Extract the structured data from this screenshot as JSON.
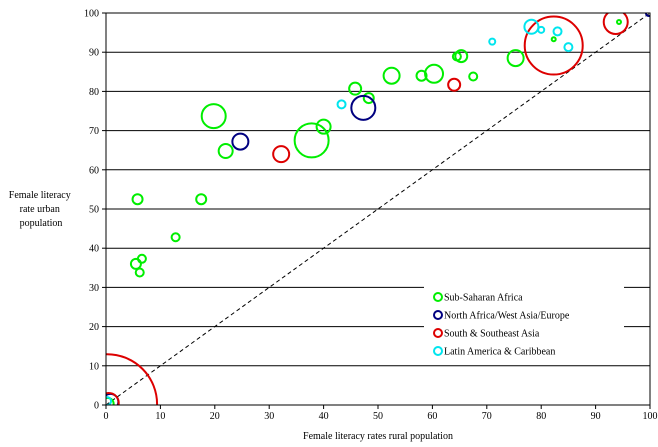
{
  "chart_data": {
    "type": "scatter",
    "title": "",
    "xlabel": "Female literacy rates rural population",
    "ylabel": [
      "Female literacy",
      "rate urban",
      "population"
    ],
    "xlim": [
      0,
      100
    ],
    "ylim": [
      0,
      100
    ],
    "xticks": [
      0,
      10,
      20,
      30,
      40,
      50,
      60,
      70,
      80,
      90,
      100
    ],
    "yticks": [
      0,
      10,
      20,
      30,
      40,
      50,
      60,
      70,
      80,
      90,
      100
    ],
    "grid": "horizontal",
    "reference_line": "y = x (dashed)",
    "legend_position": "lower-right",
    "series": [
      {
        "name": "Sub-Saharan Africa",
        "color": "#00ee00",
        "points": [
          {
            "x": 5.8,
            "y": 52.5,
            "r": 5
          },
          {
            "x": 5.5,
            "y": 36,
            "r": 5
          },
          {
            "x": 6.6,
            "y": 37.3,
            "r": 4
          },
          {
            "x": 6.2,
            "y": 33.8,
            "r": 4
          },
          {
            "x": 12.8,
            "y": 42.8,
            "r": 4
          },
          {
            "x": 17.5,
            "y": 52.5,
            "r": 5
          },
          {
            "x": 19.8,
            "y": 73.7,
            "r": 12
          },
          {
            "x": 22,
            "y": 64.8,
            "r": 7
          },
          {
            "x": 37.8,
            "y": 67.5,
            "r": 17
          },
          {
            "x": 40,
            "y": 71,
            "r": 7
          },
          {
            "x": 45.8,
            "y": 80.7,
            "r": 6
          },
          {
            "x": 48.3,
            "y": 78.3,
            "r": 5
          },
          {
            "x": 52.5,
            "y": 84,
            "r": 8
          },
          {
            "x": 58,
            "y": 84,
            "r": 5
          },
          {
            "x": 60.3,
            "y": 84.5,
            "r": 9
          },
          {
            "x": 64.5,
            "y": 88.9,
            "r": 4
          },
          {
            "x": 65.3,
            "y": 89,
            "r": 6
          },
          {
            "x": 67.5,
            "y": 83.8,
            "r": 4
          },
          {
            "x": 75.3,
            "y": 88.5,
            "r": 8
          },
          {
            "x": 82.3,
            "y": 93.3,
            "r": 2
          },
          {
            "x": 94.3,
            "y": 97.7,
            "r": 2
          },
          {
            "x": 0.3,
            "y": 0.3,
            "r": 6
          }
        ]
      },
      {
        "name": "North Africa/West Asia/Europe",
        "color": "#000080",
        "points": [
          {
            "x": 24.7,
            "y": 67.2,
            "r": 8
          },
          {
            "x": 47.3,
            "y": 75.8,
            "r": 12
          },
          {
            "x": 99.8,
            "y": 100,
            "r": 3
          },
          {
            "x": 0.8,
            "y": 0.8,
            "r": 8
          }
        ]
      },
      {
        "name": "South & Southeast Asia",
        "color": "#dd0000",
        "points": [
          {
            "x": 32.2,
            "y": 64,
            "r": 8
          },
          {
            "x": 64,
            "y": 81.7,
            "r": 6
          },
          {
            "x": 82.3,
            "y": 91.7,
            "r": 29
          },
          {
            "x": 93.7,
            "y": 97.7,
            "r": 12
          },
          {
            "x": 0.2,
            "y": 0.2,
            "r": 50
          },
          {
            "x": 0.5,
            "y": 0.5,
            "r": 10
          }
        ]
      },
      {
        "name": "Latin America & Caribbean",
        "color": "#00e5ee",
        "points": [
          {
            "x": 43.3,
            "y": 76.7,
            "r": 4
          },
          {
            "x": 71,
            "y": 92.7,
            "r": 3
          },
          {
            "x": 78.2,
            "y": 96.5,
            "r": 7
          },
          {
            "x": 80,
            "y": 95.7,
            "r": 3
          },
          {
            "x": 83,
            "y": 95.3,
            "r": 4
          },
          {
            "x": 85,
            "y": 91.3,
            "r": 4
          },
          {
            "x": 0.2,
            "y": 1.0,
            "r": 4
          }
        ]
      }
    ]
  }
}
